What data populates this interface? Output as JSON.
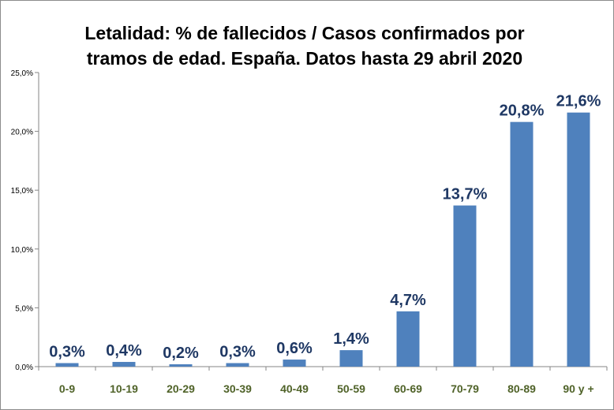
{
  "chart_data": {
    "type": "bar",
    "title": "Letalidad: % de fallecidos / Casos confirmados por tramos de edad. España.  Datos hasta 29 abril 2020",
    "title_lines": [
      "Letalidad: % de fallecidos / Casos confirmados por",
      "tramos de edad. España.  Datos hasta 29 abril 2020"
    ],
    "xlabel": "",
    "ylabel": "",
    "categories": [
      "0-9",
      "10-19",
      "20-29",
      "30-39",
      "40-49",
      "50-59",
      "60-69",
      "70-79",
      "80-89",
      "90 y +"
    ],
    "values": [
      0.3,
      0.4,
      0.2,
      0.3,
      0.6,
      1.4,
      4.7,
      13.7,
      20.8,
      21.6
    ],
    "data_labels": [
      "0,3%",
      "0,4%",
      "0,2%",
      "0,3%",
      "0,6%",
      "1,4%",
      "4,7%",
      "13,7%",
      "20,8%",
      "21,6%"
    ],
    "y_ticks": [
      0,
      5,
      10,
      15,
      20,
      25
    ],
    "y_tick_labels": [
      "0,0%",
      "5,0%",
      "10,0%",
      "15,0%",
      "20,0%",
      "25,0%"
    ],
    "ylim": [
      0,
      25
    ],
    "grid": false,
    "legend": "none",
    "colors": {
      "bar": "#4f81bd",
      "data_label": "#1f3864",
      "x_tick_label": "#4f6228",
      "axis": "#868686"
    }
  }
}
